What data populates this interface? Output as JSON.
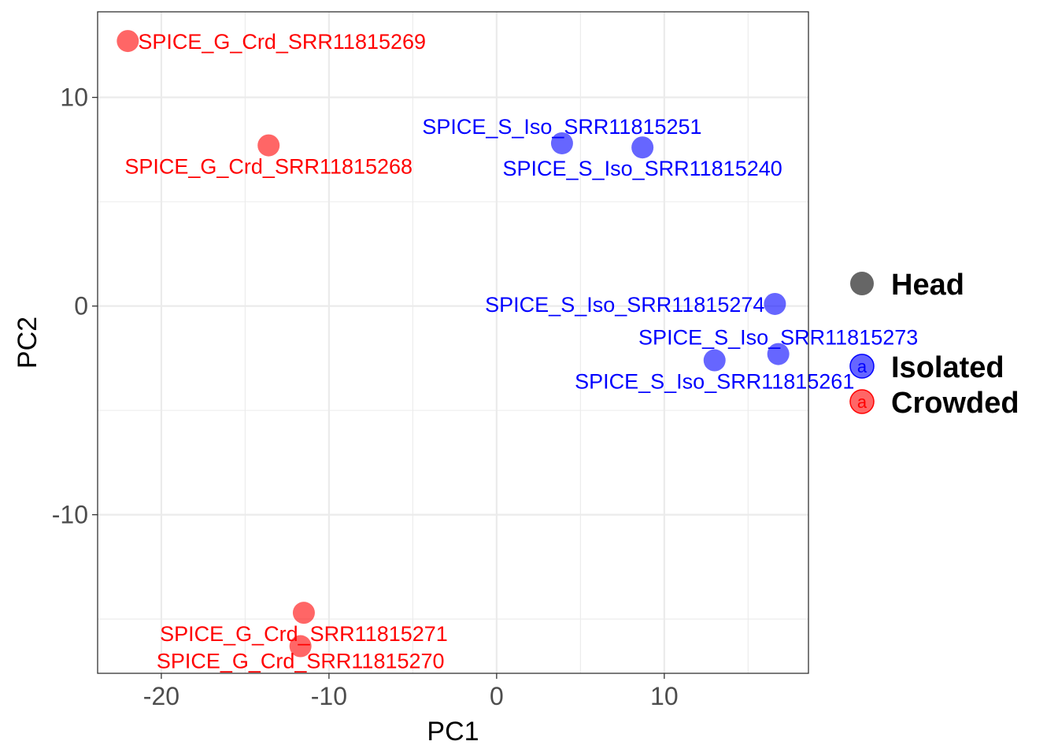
{
  "chart_data": {
    "type": "scatter",
    "xlabel": "PC1",
    "ylabel": "PC2",
    "xlim": [
      -23.8,
      18.6
    ],
    "ylim": [
      -17.6,
      14.1
    ],
    "x_ticks": [
      -20,
      -10,
      0,
      10
    ],
    "x_tick_labels": [
      "-20",
      "-10",
      "0",
      "10"
    ],
    "y_ticks": [
      -10,
      0,
      10
    ],
    "y_tick_labels": [
      "-10",
      "0",
      "10"
    ],
    "grid": true,
    "legend_position": "right",
    "legend": {
      "shape_entries": [
        {
          "label": "Head",
          "color": "#666666"
        }
      ],
      "color_entries": [
        {
          "label": "Isolated",
          "color": "#0000ff"
        },
        {
          "label": "Crowded",
          "color": "#ff0000"
        }
      ],
      "key_glyph": "a"
    },
    "groups": {
      "Isolated": "#0000ff",
      "Crowded": "#ff0000"
    },
    "points": [
      {
        "label": "SPICE_G_Crd_SRR11815269",
        "x": -22.0,
        "y": 12.7,
        "group": "Crowded",
        "label_pos": "right"
      },
      {
        "label": "SPICE_G_Crd_SRR11815268",
        "x": -13.6,
        "y": 7.7,
        "group": "Crowded",
        "label_pos": "below"
      },
      {
        "label": "SPICE_G_Crd_SRR11815271",
        "x": -11.5,
        "y": -14.7,
        "group": "Crowded",
        "label_pos": "below"
      },
      {
        "label": "SPICE_G_Crd_SRR11815270",
        "x": -11.7,
        "y": -16.3,
        "group": "Crowded",
        "label_pos": "below2"
      },
      {
        "label": "SPICE_S_Iso_SRR11815251",
        "x": 3.9,
        "y": 7.8,
        "group": "Isolated",
        "label_pos": "above"
      },
      {
        "label": "SPICE_S_Iso_SRR11815240",
        "x": 8.7,
        "y": 7.6,
        "group": "Isolated",
        "label_pos": "below"
      },
      {
        "label": "SPICE_S_Iso_SRR11815274",
        "x": 16.6,
        "y": 0.1,
        "group": "Isolated",
        "label_pos": "left"
      },
      {
        "label": "SPICE_S_Iso_SRR11815273",
        "x": 16.8,
        "y": -2.3,
        "group": "Isolated",
        "label_pos": "above"
      },
      {
        "label": "SPICE_S_Iso_SRR11815261",
        "x": 13.0,
        "y": -2.6,
        "group": "Isolated",
        "label_pos": "below"
      }
    ]
  }
}
